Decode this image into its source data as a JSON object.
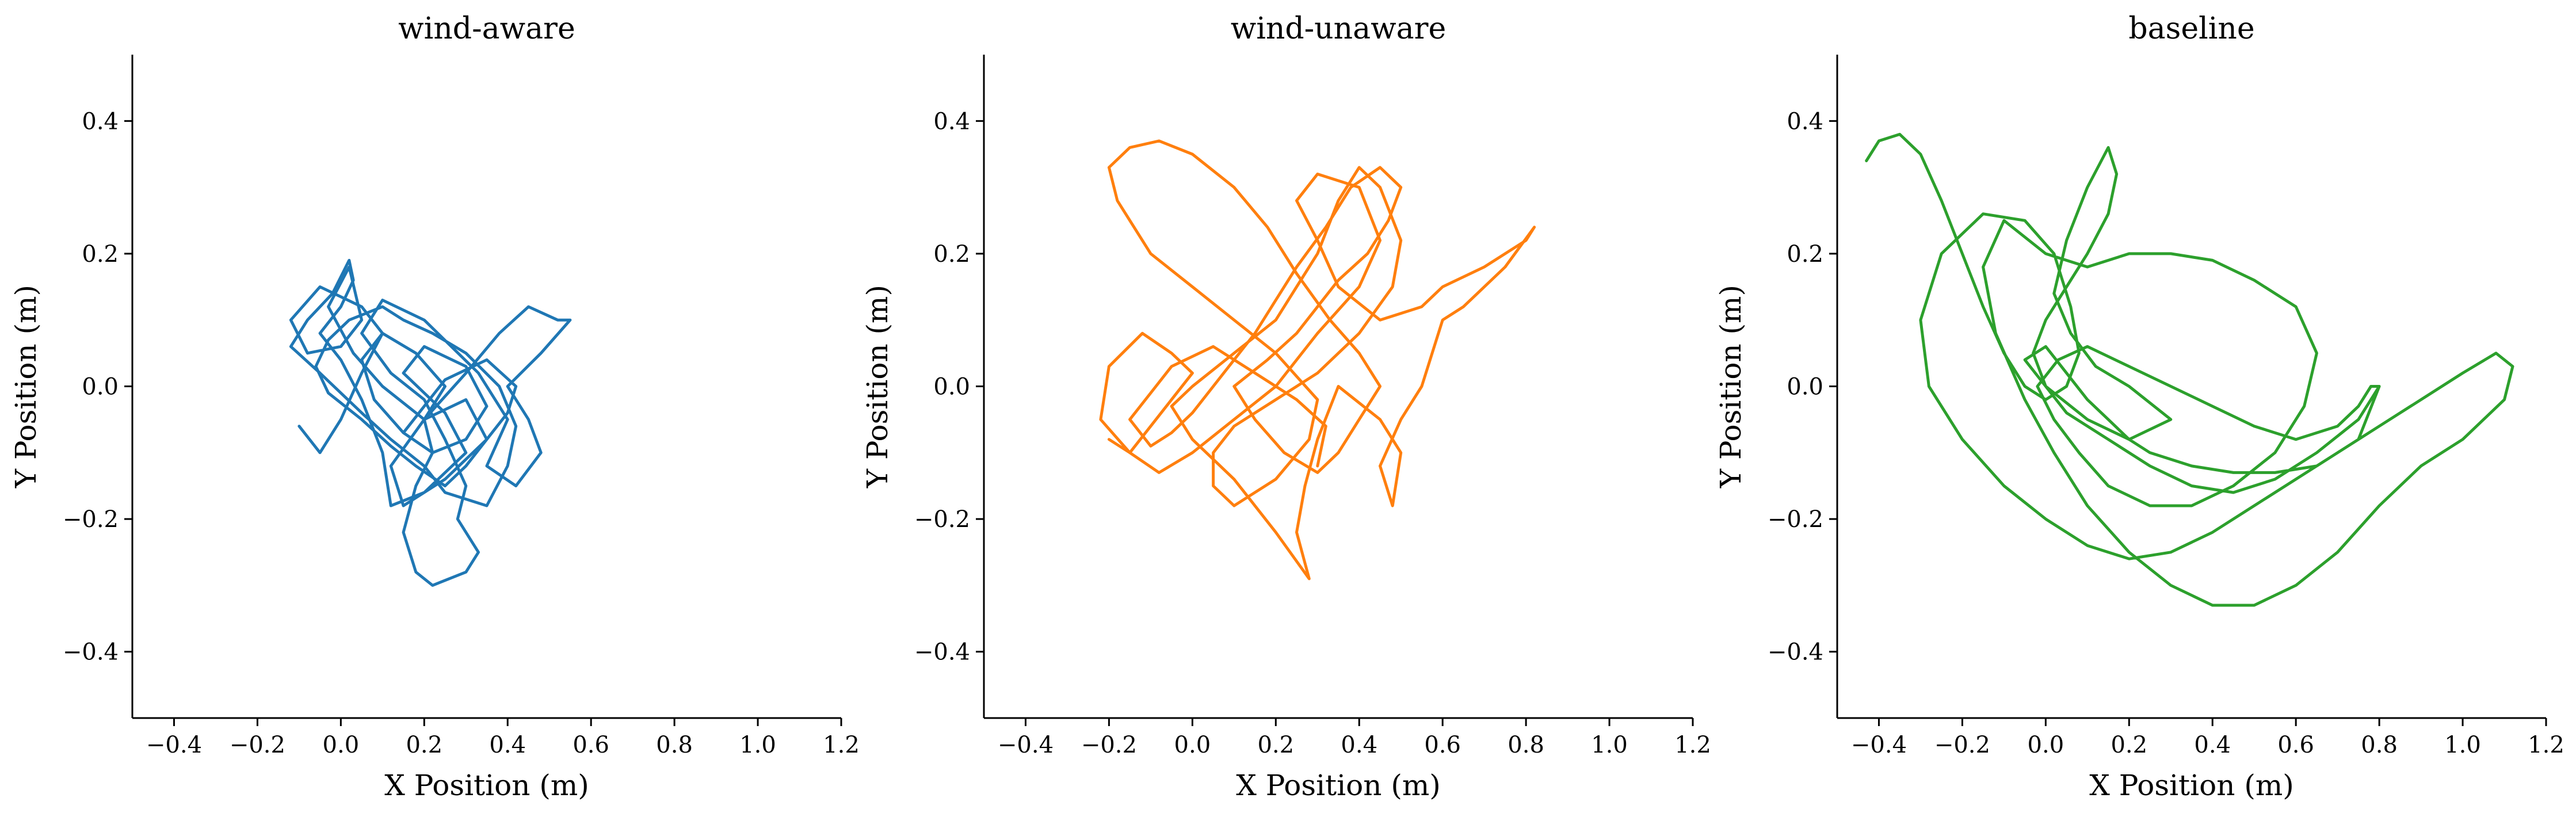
{
  "chart_data": [
    {
      "type": "line",
      "title": "wind-aware",
      "xlabel": "X Position (m)",
      "ylabel": "Y Position (m)",
      "xlim": [
        -0.5,
        1.2
      ],
      "ylim": [
        -0.5,
        0.5
      ],
      "xticks": [
        -0.4,
        -0.2,
        0.0,
        0.2,
        0.4,
        0.6,
        0.8,
        1.0,
        1.2
      ],
      "yticks": [
        -0.4,
        -0.2,
        0.0,
        0.2,
        0.4
      ],
      "xtick_labels": [
        "−0.4",
        "−0.2",
        "0.0",
        "0.2",
        "0.4",
        "0.6",
        "0.8",
        "1.0",
        "1.2"
      ],
      "ytick_labels": [
        "−0.4",
        "−0.2",
        "0.0",
        "0.2",
        "0.4"
      ],
      "color": "#1f77b4",
      "series": [
        {
          "x": [
            -0.1,
            -0.05,
            0.0,
            0.05,
            0.1,
            0.05,
            -0.05,
            -0.12,
            -0.08,
            0.0,
            0.05,
            0.02,
            -0.03,
            0.03,
            0.1,
            0.2,
            0.3,
            0.38,
            0.45,
            0.52,
            0.55,
            0.48,
            0.4,
            0.45,
            0.48,
            0.42,
            0.35,
            0.4,
            0.33,
            0.2,
            0.1,
            0.05,
            0.12,
            0.2,
            0.25,
            0.3,
            0.28,
            0.33,
            0.3,
            0.22,
            0.18,
            0.15,
            0.18,
            0.22,
            0.2,
            0.3,
            0.35,
            0.25,
            0.15,
            0.12,
            0.2,
            0.25,
            0.18,
            0.1,
            0.05,
            0.08,
            0.15,
            0.22,
            0.3,
            0.35,
            0.3,
            0.2,
            0.15,
            0.25,
            0.3,
            0.2,
            0.12,
            0.1,
            0.05,
            0.0,
            -0.05,
            0.0,
            0.03,
            0.02,
            -0.02,
            -0.08,
            -0.12,
            -0.05,
            0.05,
            0.12,
            0.2,
            0.25,
            0.35,
            0.4,
            0.42,
            0.38,
            0.3,
            0.22,
            0.15,
            0.1,
            0.02,
            -0.03,
            -0.06,
            -0.03,
            0.05,
            0.12,
            0.18,
            0.25,
            0.3,
            0.35,
            0.4,
            0.42,
            0.35,
            0.25,
            0.2,
            0.15
          ],
          "y": [
            -0.06,
            -0.1,
            -0.05,
            0.02,
            0.08,
            0.12,
            0.15,
            0.1,
            0.05,
            0.06,
            0.1,
            0.18,
            0.12,
            0.05,
            0.0,
            -0.05,
            0.02,
            0.08,
            0.12,
            0.1,
            0.1,
            0.05,
            0.0,
            -0.05,
            -0.1,
            -0.15,
            -0.12,
            -0.05,
            0.02,
            0.1,
            0.13,
            0.08,
            0.02,
            -0.02,
            -0.08,
            -0.15,
            -0.2,
            -0.25,
            -0.28,
            -0.3,
            -0.28,
            -0.22,
            -0.15,
            -0.1,
            -0.05,
            -0.02,
            -0.08,
            -0.14,
            -0.18,
            -0.12,
            -0.05,
            0.0,
            0.05,
            0.08,
            0.04,
            -0.02,
            -0.07,
            -0.1,
            -0.08,
            -0.03,
            0.03,
            0.06,
            0.02,
            -0.04,
            -0.1,
            -0.16,
            -0.18,
            -0.1,
            -0.02,
            0.04,
            0.08,
            0.12,
            0.16,
            0.19,
            0.14,
            0.1,
            0.06,
            0.02,
            -0.04,
            -0.08,
            -0.12,
            -0.16,
            -0.18,
            -0.12,
            -0.06,
            0.0,
            0.05,
            0.08,
            0.1,
            0.12,
            0.1,
            0.07,
            0.03,
            -0.01,
            -0.05,
            -0.09,
            -0.12,
            -0.15,
            -0.12,
            -0.08,
            -0.04,
            0.0,
            0.04,
            0.01,
            -0.03,
            -0.07
          ]
        }
      ]
    },
    {
      "type": "line",
      "title": "wind-unaware",
      "xlabel": "X Position (m)",
      "ylabel": "Y Position (m)",
      "xlim": [
        -0.5,
        1.2
      ],
      "ylim": [
        -0.5,
        0.5
      ],
      "xticks": [
        -0.4,
        -0.2,
        0.0,
        0.2,
        0.4,
        0.6,
        0.8,
        1.0,
        1.2
      ],
      "yticks": [
        -0.4,
        -0.2,
        0.0,
        0.2,
        0.4
      ],
      "xtick_labels": [
        "−0.4",
        "−0.2",
        "0.0",
        "0.2",
        "0.4",
        "0.6",
        "0.8",
        "1.0",
        "1.2"
      ],
      "ytick_labels": [
        "−0.4",
        "−0.2",
        "0.0",
        "0.2",
        "0.4"
      ],
      "color": "#ff7f0e",
      "series": [
        {
          "x": [
            -0.2,
            -0.15,
            -0.1,
            -0.05,
            0.0,
            -0.05,
            -0.12,
            -0.2,
            -0.22,
            -0.15,
            -0.08,
            0.0,
            0.1,
            0.2,
            0.3,
            0.4,
            0.45,
            0.4,
            0.3,
            0.25,
            0.3,
            0.35,
            0.45,
            0.55,
            0.6,
            0.7,
            0.8,
            0.82,
            0.75,
            0.65,
            0.6,
            0.58,
            0.55,
            0.5,
            0.45,
            0.48,
            0.5,
            0.45,
            0.35,
            0.3,
            0.27,
            0.25,
            0.28,
            0.2,
            0.1,
            0.0,
            -0.05,
            0.0,
            0.1,
            0.2,
            0.25,
            0.3,
            0.35,
            0.4,
            0.45,
            0.5,
            0.48,
            0.4,
            0.3,
            0.2,
            0.1,
            0.05,
            0.05,
            0.1,
            0.2,
            0.28,
            0.3,
            0.2,
            0.1,
            0.0,
            -0.1,
            -0.18,
            -0.2,
            -0.15,
            -0.08,
            0.0,
            0.1,
            0.18,
            0.25,
            0.33,
            0.4,
            0.45,
            0.4,
            0.35,
            0.3,
            0.22,
            0.15,
            0.1,
            0.18,
            0.25,
            0.3,
            0.35,
            0.42,
            0.47,
            0.5,
            0.45,
            0.38,
            0.32,
            0.25,
            0.2,
            0.15,
            0.1,
            0.05,
            0.0,
            -0.05,
            -0.1,
            -0.15,
            -0.1,
            -0.05,
            0.05,
            0.15,
            0.25,
            0.32,
            0.3
          ],
          "y": [
            -0.08,
            -0.1,
            -0.06,
            -0.02,
            0.02,
            0.05,
            0.08,
            0.03,
            -0.05,
            -0.1,
            -0.13,
            -0.1,
            -0.05,
            0.0,
            0.08,
            0.15,
            0.22,
            0.3,
            0.32,
            0.28,
            0.22,
            0.15,
            0.1,
            0.12,
            0.15,
            0.18,
            0.22,
            0.24,
            0.18,
            0.12,
            0.1,
            0.06,
            0.0,
            -0.05,
            -0.12,
            -0.18,
            -0.1,
            -0.05,
            0.0,
            -0.08,
            -0.15,
            -0.22,
            -0.29,
            -0.22,
            -0.14,
            -0.08,
            -0.03,
            0.0,
            0.05,
            0.1,
            0.15,
            0.2,
            0.28,
            0.33,
            0.3,
            0.22,
            0.15,
            0.08,
            0.02,
            -0.02,
            -0.06,
            -0.1,
            -0.15,
            -0.18,
            -0.14,
            -0.08,
            -0.02,
            0.05,
            0.1,
            0.15,
            0.2,
            0.28,
            0.33,
            0.36,
            0.37,
            0.35,
            0.3,
            0.24,
            0.17,
            0.1,
            0.05,
            0.0,
            -0.05,
            -0.1,
            -0.13,
            -0.1,
            -0.05,
            0.0,
            0.04,
            0.08,
            0.12,
            0.16,
            0.2,
            0.25,
            0.3,
            0.33,
            0.3,
            0.24,
            0.18,
            0.13,
            0.08,
            0.04,
            0.0,
            -0.04,
            -0.07,
            -0.09,
            -0.05,
            -0.01,
            0.03,
            0.06,
            0.02,
            -0.02,
            -0.06,
            -0.12
          ]
        }
      ]
    },
    {
      "type": "line",
      "title": "baseline",
      "xlabel": "X Position (m)",
      "ylabel": "Y Position (m)",
      "xlim": [
        -0.5,
        1.2
      ],
      "ylim": [
        -0.5,
        0.5
      ],
      "xticks": [
        -0.4,
        -0.2,
        0.0,
        0.2,
        0.4,
        0.6,
        0.8,
        1.0,
        1.2
      ],
      "yticks": [
        -0.4,
        -0.2,
        0.0,
        0.2,
        0.4
      ],
      "xtick_labels": [
        "−0.4",
        "−0.2",
        "0.0",
        "0.2",
        "0.4",
        "0.6",
        "0.8",
        "1.0",
        "1.2"
      ],
      "ytick_labels": [
        "−0.4",
        "−0.2",
        "0.0",
        "0.2",
        "0.4"
      ],
      "color": "#2ca02c",
      "series": [
        {
          "x": [
            -0.43,
            -0.4,
            -0.35,
            -0.3,
            -0.25,
            -0.2,
            -0.15,
            -0.1,
            -0.05,
            0.0,
            0.05,
            0.08,
            0.06,
            0.02,
            -0.05,
            -0.15,
            -0.25,
            -0.3,
            -0.28,
            -0.2,
            -0.1,
            0.0,
            0.1,
            0.2,
            0.3,
            0.4,
            0.5,
            0.6,
            0.7,
            0.8,
            0.9,
            1.0,
            1.08,
            1.12,
            1.1,
            1.0,
            0.9,
            0.8,
            0.7,
            0.6,
            0.5,
            0.4,
            0.3,
            0.2,
            0.1,
            0.02,
            -0.05,
            -0.12,
            -0.15,
            -0.1,
            0.0,
            0.1,
            0.2,
            0.3,
            0.4,
            0.5,
            0.6,
            0.65,
            0.62,
            0.55,
            0.45,
            0.35,
            0.25,
            0.15,
            0.08,
            0.02,
            -0.02,
            0.03,
            0.1,
            0.2,
            0.3,
            0.4,
            0.5,
            0.6,
            0.7,
            0.75,
            0.78,
            0.8,
            0.75,
            0.65,
            0.55,
            0.45,
            0.35,
            0.25,
            0.15,
            0.05,
            0.0,
            -0.03,
            0.0,
            0.05,
            0.1,
            0.15,
            0.17,
            0.15,
            0.1,
            0.05,
            0.02,
            0.06,
            0.12,
            0.2,
            0.3,
            0.2,
            0.1,
            0.0,
            -0.05,
            0.0,
            0.05,
            0.1,
            0.15,
            0.2,
            0.25,
            0.35,
            0.45,
            0.55,
            0.65,
            0.75,
            0.8
          ],
          "y": [
            0.34,
            0.37,
            0.38,
            0.35,
            0.28,
            0.2,
            0.12,
            0.05,
            0.0,
            -0.02,
            0.0,
            0.05,
            0.12,
            0.2,
            0.25,
            0.26,
            0.2,
            0.1,
            0.0,
            -0.08,
            -0.15,
            -0.2,
            -0.24,
            -0.26,
            -0.25,
            -0.22,
            -0.18,
            -0.14,
            -0.1,
            -0.06,
            -0.02,
            0.02,
            0.05,
            0.03,
            -0.02,
            -0.08,
            -0.12,
            -0.18,
            -0.25,
            -0.3,
            -0.33,
            -0.33,
            -0.3,
            -0.25,
            -0.18,
            -0.1,
            -0.02,
            0.08,
            0.18,
            0.25,
            0.2,
            0.18,
            0.2,
            0.2,
            0.19,
            0.16,
            0.12,
            0.05,
            -0.03,
            -0.1,
            -0.15,
            -0.18,
            -0.18,
            -0.15,
            -0.1,
            -0.05,
            0.0,
            0.04,
            0.06,
            0.03,
            0.0,
            -0.03,
            -0.06,
            -0.08,
            -0.06,
            -0.03,
            0.0,
            0.0,
            -0.05,
            -0.1,
            -0.14,
            -0.16,
            -0.15,
            -0.12,
            -0.08,
            -0.04,
            0.0,
            0.05,
            0.1,
            0.15,
            0.2,
            0.26,
            0.32,
            0.36,
            0.3,
            0.22,
            0.14,
            0.08,
            0.03,
            0.0,
            -0.05,
            -0.08,
            -0.05,
            0.0,
            0.04,
            0.06,
            0.02,
            -0.02,
            -0.05,
            -0.08,
            -0.1,
            -0.12,
            -0.13,
            -0.13,
            -0.12,
            -0.08,
            0.0
          ]
        }
      ]
    }
  ]
}
